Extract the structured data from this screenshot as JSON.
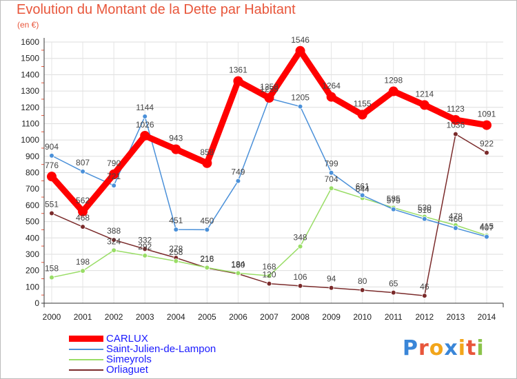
{
  "title": "Evolution du Montant de la Dette par Habitant",
  "unit_label": "(en €)",
  "logo": {
    "letters": [
      "P",
      "r",
      "o",
      "x",
      "i",
      "t",
      "i"
    ],
    "colors": [
      "#3a86d8",
      "#e8563b",
      "#f2a51a",
      "#3a86d8",
      "#f2a51a",
      "#e8563b",
      "#8bc34a"
    ]
  },
  "chart_data": {
    "type": "line",
    "title": "Evolution du Montant de la Dette par Habitant",
    "ylabel": "(en €)",
    "xlabel": "",
    "x": [
      "2000",
      "2001",
      "2002",
      "2003",
      "2004",
      "2005",
      "2006",
      "2007",
      "2008",
      "2009",
      "2010",
      "2011",
      "2012",
      "2013",
      "2014"
    ],
    "ylim": [
      0,
      1600
    ],
    "yticks": [
      0,
      100,
      200,
      300,
      400,
      500,
      600,
      700,
      800,
      900,
      1000,
      1100,
      1200,
      1300,
      1400,
      1500,
      1600
    ],
    "grid": true,
    "legend_position": "bottom-left",
    "series": [
      {
        "name": "CARLUX",
        "color": "#ff0000",
        "values": [
          776,
          562,
          790,
          1026,
          943,
          858,
          1361,
          1258,
          1546,
          1264,
          1155,
          1298,
          1214,
          1123,
          1091
        ]
      },
      {
        "name": "Saint-Julien-de-Lampon",
        "color": "#4a90d9",
        "values": [
          904,
          807,
          721,
          1144,
          451,
          450,
          749,
          1255,
          1205,
          799,
          661,
          575,
          516,
          460,
          407
        ]
      },
      {
        "name": "Simeyrols",
        "color": "#99dd66",
        "values": [
          158,
          198,
          324,
          292,
          258,
          218,
          184,
          168,
          348,
          704,
          644,
          585,
          530,
          478,
          415
        ]
      },
      {
        "name": "Orliaguet",
        "color": "#7a2a2a",
        "values": [
          551,
          468,
          388,
          332,
          278,
          216,
          180,
          120,
          106,
          94,
          80,
          65,
          46,
          1036,
          922
        ]
      }
    ]
  }
}
